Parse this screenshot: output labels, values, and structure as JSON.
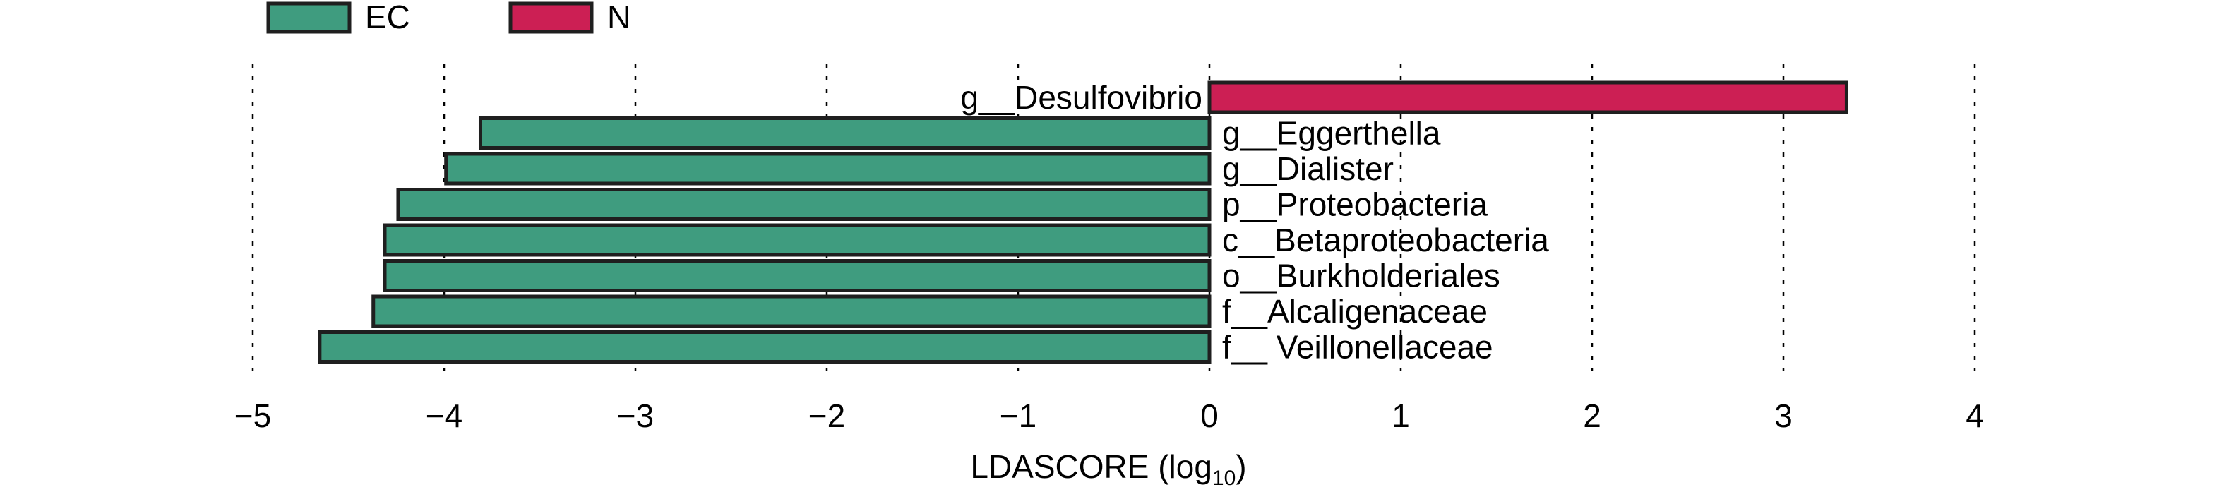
{
  "chart_data": {
    "type": "bar",
    "orientation": "horizontal",
    "legend": [
      {
        "name": "EC",
        "color": "#3f9c7f"
      },
      {
        "name": "N",
        "color": "#cc1f54"
      }
    ],
    "legend_position": "top-left",
    "categories": [
      "g__Desulfovibrio",
      "g__Eggerthella",
      "g__Dialister",
      "p__Proteobacteria",
      "c__Betaproteobacteria",
      "o__Burkholderiales",
      "f__Alcaligenaceae",
      "f__ Veillonellaceae"
    ],
    "values": [
      3.33,
      -3.81,
      -3.99,
      -4.24,
      -4.31,
      -4.31,
      -4.37,
      -4.65
    ],
    "groups": [
      "N",
      "EC",
      "EC",
      "EC",
      "EC",
      "EC",
      "EC",
      "EC"
    ],
    "xlim": [
      -5,
      4
    ],
    "xticks": [
      -5,
      -4,
      -3,
      -2,
      -1,
      0,
      1,
      2,
      3,
      4
    ],
    "xtick_labels": [
      "−5",
      "−4",
      "−3",
      "−2",
      "−1",
      "0",
      "1",
      "2",
      "3",
      "4"
    ],
    "xlabel": "LDASCORE (log",
    "xlabel_sub": "10",
    "xlabel_suffix": ")",
    "grid": "vertical dashed",
    "title": ""
  }
}
